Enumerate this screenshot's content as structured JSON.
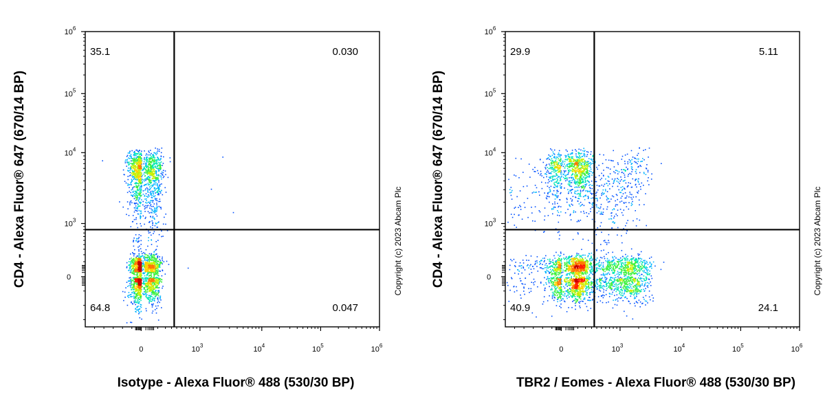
{
  "chart_data": [
    {
      "type": "scatter",
      "xlabel": "Isotype - Alexa Fluor® 488 (530/30 BP)",
      "ylabel": "CD4 - Alexa Fluor® 647 (670/14 BP)",
      "x_scale": "biexponential",
      "y_scale": "biexponential",
      "xlim": [
        -600,
        1000000
      ],
      "ylim": [
        -350,
        1000000
      ],
      "x_ticks": [
        {
          "value": 0,
          "base": "0",
          "exp": ""
        },
        {
          "value": 1000,
          "base": "10",
          "exp": "3"
        },
        {
          "value": 10000,
          "base": "10",
          "exp": "4"
        },
        {
          "value": 100000,
          "base": "10",
          "exp": "5"
        },
        {
          "value": 1000000,
          "base": "10",
          "exp": "6"
        }
      ],
      "y_ticks": [
        {
          "value": 0,
          "base": "0",
          "exp": ""
        },
        {
          "value": 1000,
          "base": "10",
          "exp": "3"
        },
        {
          "value": 10000,
          "base": "10",
          "exp": "4"
        },
        {
          "value": 100000,
          "base": "10",
          "exp": "5"
        },
        {
          "value": 1000000,
          "base": "10",
          "exp": "6"
        }
      ],
      "gate_x": 350,
      "gate_y": 800,
      "quadrants": {
        "top_left": "35.1",
        "top_right": "0.030",
        "bottom_left": "64.8",
        "bottom_right": "0.047"
      },
      "populations": [
        {
          "x_center": 0,
          "y_center": 0,
          "x_spread": 60,
          "y_spread": 90,
          "count": 1700
        },
        {
          "x_center": 0,
          "y_center": 5800,
          "x_spread": 70,
          "y_spread": 2200,
          "count": 1000
        },
        {
          "x_center": 0,
          "y_center": 1500,
          "x_spread": 70,
          "y_spread": 1400,
          "count": 350
        }
      ],
      "outliers": [
        [
          2300,
          8800
        ],
        [
          1500,
          3100
        ],
        [
          3400,
          1450
        ],
        [
          -420,
          7800
        ],
        [
          650,
          40
        ]
      ],
      "copyright": "Copyright (c) 2023 Abcam Plc"
    },
    {
      "type": "scatter",
      "xlabel": "TBR2 / Eomes - Alexa Fluor® 488 (530/30 BP)",
      "ylabel": "CD4 - Alexa Fluor® 647 (670/14 BP)",
      "x_scale": "biexponential",
      "y_scale": "biexponential",
      "xlim": [
        -600,
        1000000
      ],
      "ylim": [
        -350,
        1000000
      ],
      "x_ticks": [
        {
          "value": 0,
          "base": "0",
          "exp": ""
        },
        {
          "value": 1000,
          "base": "10",
          "exp": "3"
        },
        {
          "value": 10000,
          "base": "10",
          "exp": "4"
        },
        {
          "value": 100000,
          "base": "10",
          "exp": "5"
        },
        {
          "value": 1000000,
          "base": "10",
          "exp": "6"
        }
      ],
      "y_ticks": [
        {
          "value": 0,
          "base": "0",
          "exp": ""
        },
        {
          "value": 1000,
          "base": "10",
          "exp": "3"
        },
        {
          "value": 10000,
          "base": "10",
          "exp": "4"
        },
        {
          "value": 100000,
          "base": "10",
          "exp": "5"
        },
        {
          "value": 1000000,
          "base": "10",
          "exp": "6"
        }
      ],
      "gate_x": 350,
      "gate_y": 800,
      "quadrants": {
        "top_left": "29.9",
        "top_right": "5.11",
        "bottom_left": "40.9",
        "bottom_right": "24.1"
      },
      "populations": [
        {
          "x_center": 60,
          "y_center": 0,
          "x_spread": 90,
          "y_spread": 80,
          "count": 1500
        },
        {
          "x_center": 900,
          "y_center": 0,
          "x_spread": 900,
          "y_spread": 80,
          "count": 1400
        },
        {
          "x_center": 60,
          "y_center": 5800,
          "x_spread": 110,
          "y_spread": 2200,
          "count": 900
        },
        {
          "x_center": 1100,
          "y_center": 5200,
          "x_spread": 900,
          "y_spread": 2400,
          "count": 220
        },
        {
          "x_center": 300,
          "y_center": 1800,
          "x_spread": 700,
          "y_spread": 1500,
          "count": 420
        }
      ],
      "outliers": [
        [
          4500,
          30
        ],
        [
          -250,
          5200
        ],
        [
          -350,
          7000
        ],
        [
          5000,
          100
        ]
      ],
      "copyright": "Copyright (c) 2023 Abcam Plc"
    }
  ],
  "colormap": [
    "#0000cc",
    "#0050ff",
    "#00b4ff",
    "#00e6b4",
    "#3cf03c",
    "#c8f000",
    "#ffd200",
    "#ff7800",
    "#ff1e00",
    "#c80000"
  ]
}
